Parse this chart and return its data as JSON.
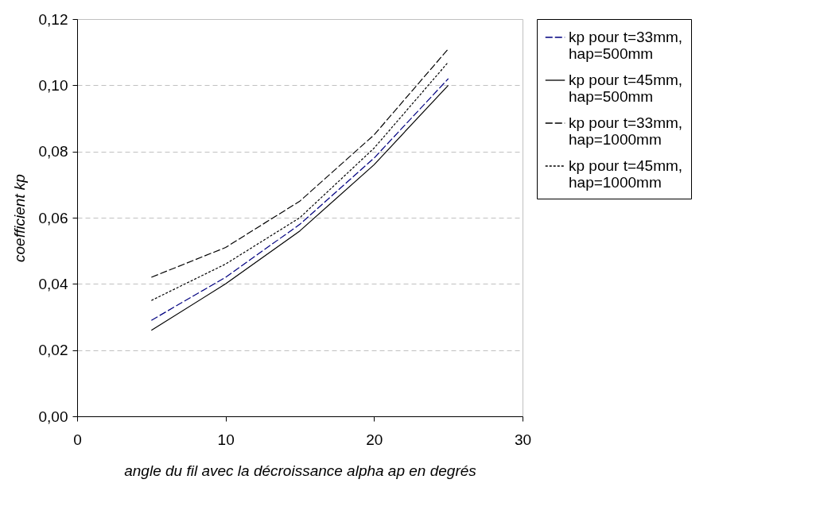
{
  "chart_data": {
    "type": "line",
    "xlabel": "angle du fil avec la décroissance alpha ap en degrés",
    "ylabel": "coefficient kp",
    "x": [
      5,
      10,
      15,
      20,
      25
    ],
    "series": [
      {
        "name": "kp pour t=33mm, hap=500mm",
        "color": "#000080",
        "line_style": "dashed",
        "values": [
          0.029,
          0.042,
          0.058,
          0.078,
          0.102
        ]
      },
      {
        "name": "kp pour t=45mm, hap=500mm",
        "color": "#000000",
        "line_style": "solid",
        "values": [
          0.026,
          0.04,
          0.056,
          0.076,
          0.1
        ]
      },
      {
        "name": "kp pour t=33mm, hap=1000mm",
        "color": "#000000",
        "line_style": "dashed",
        "values": [
          0.042,
          0.051,
          0.065,
          0.085,
          0.111
        ]
      },
      {
        "name": "kp pour t=45mm, hap=1000mm",
        "color": "#000000",
        "line_style": "dotted",
        "values": [
          0.035,
          0.046,
          0.06,
          0.081,
          0.107
        ]
      }
    ],
    "xlim": [
      0,
      30
    ],
    "xticks": [
      0,
      10,
      20,
      30
    ],
    "ylim": [
      0,
      0.12
    ],
    "yticks": [
      {
        "value": 0,
        "label": "0,00"
      },
      {
        "value": 0.02,
        "label": "0,02"
      },
      {
        "value": 0.04,
        "label": "0,04"
      },
      {
        "value": 0.06,
        "label": "0,06"
      },
      {
        "value": 0.08,
        "label": "0,08"
      },
      {
        "value": 0.1,
        "label": "0,10"
      },
      {
        "value": 0.12,
        "label": "0,12"
      }
    ],
    "grid": "y",
    "legend": "right",
    "marker": "none"
  }
}
